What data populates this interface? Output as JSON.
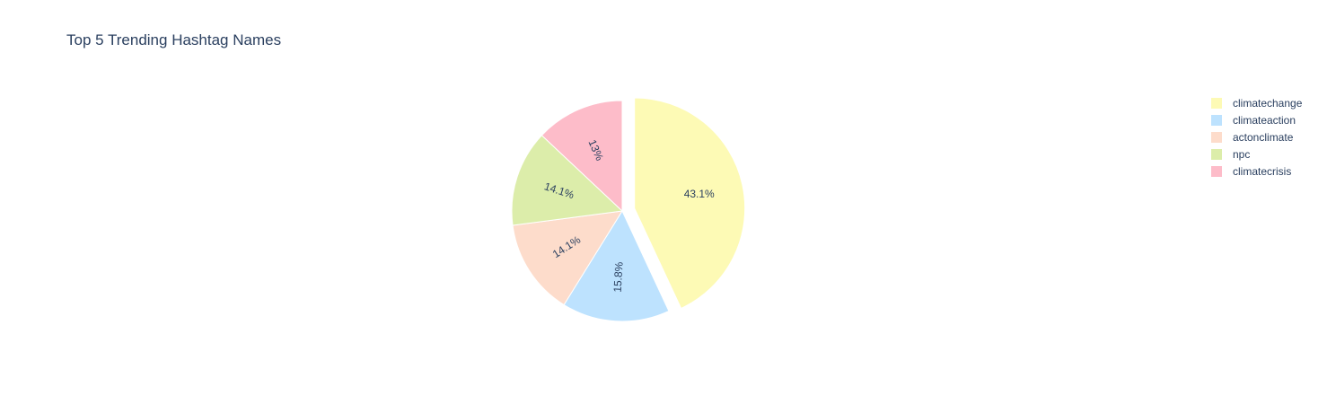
{
  "chart_data": {
    "type": "pie",
    "title": "Top 5 Trending Hashtag Names",
    "labels": [
      "climatechange",
      "climateaction",
      "actonclimate",
      "npc",
      "climatecrisis"
    ],
    "values": [
      43.1,
      15.8,
      14.1,
      14.1,
      13.0
    ],
    "text_labels": [
      "43.1%",
      "15.8%",
      "14.1%",
      "14.1%",
      "13%"
    ],
    "pulled": [
      "climatechange"
    ],
    "direction": "clockwise",
    "start": "top",
    "legend_position": "top-right",
    "colors": [
      "#fdfab5",
      "#bde2fe",
      "#fddccb",
      "#dcedaa",
      "#fdbcc9"
    ]
  }
}
